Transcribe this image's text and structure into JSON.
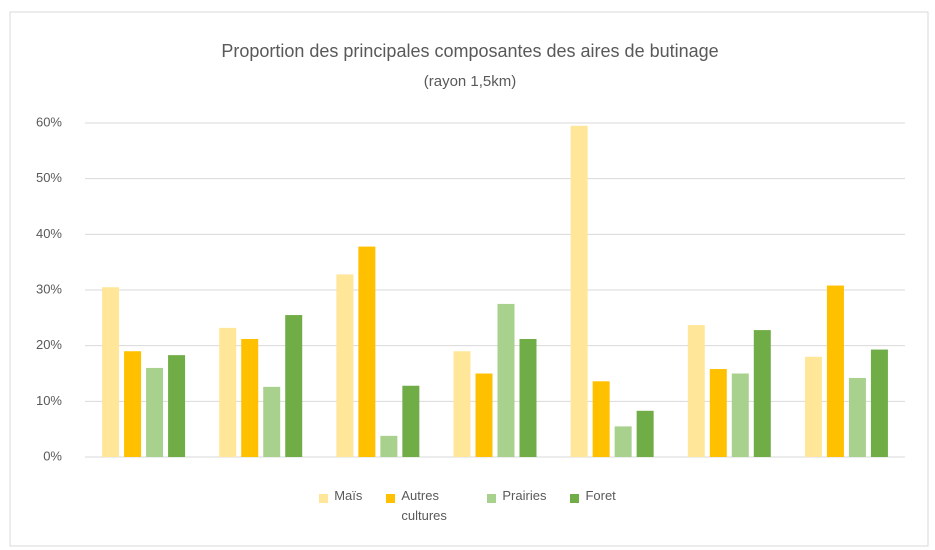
{
  "chart_data": {
    "type": "bar",
    "title": "Proportion des principales composantes des aires de butinage",
    "subtitle": "(rayon 1,5km)",
    "categories": [
      null,
      null,
      null,
      null,
      null,
      null,
      null
    ],
    "series": [
      {
        "name": "Maïs",
        "color": "#ffe699",
        "values": [
          30.5,
          23.2,
          32.8,
          19,
          59.5,
          23.7,
          18
        ]
      },
      {
        "name": "Autres cultures",
        "color": "#ffc000",
        "values": [
          19,
          21.2,
          37.8,
          15,
          13.6,
          15.8,
          30.8
        ]
      },
      {
        "name": "Prairies",
        "color": "#a9d18e",
        "values": [
          16,
          12.6,
          3.8,
          27.5,
          5.5,
          15,
          14.2
        ]
      },
      {
        "name": "Foret",
        "color": "#70ad47",
        "values": [
          18.3,
          25.5,
          12.8,
          21.2,
          8.3,
          22.8,
          19.3
        ]
      }
    ],
    "ylim": [
      0,
      60
    ],
    "yticks": [
      {
        "value": 0,
        "label": "0%"
      },
      {
        "value": 10,
        "label": "10%"
      },
      {
        "value": 20,
        "label": "20%"
      },
      {
        "value": 30,
        "label": "30%"
      },
      {
        "value": 40,
        "label": "40%"
      },
      {
        "value": 50,
        "label": "50%"
      },
      {
        "value": 60,
        "label": "60%"
      }
    ],
    "grid": true,
    "legend": "bottom"
  }
}
